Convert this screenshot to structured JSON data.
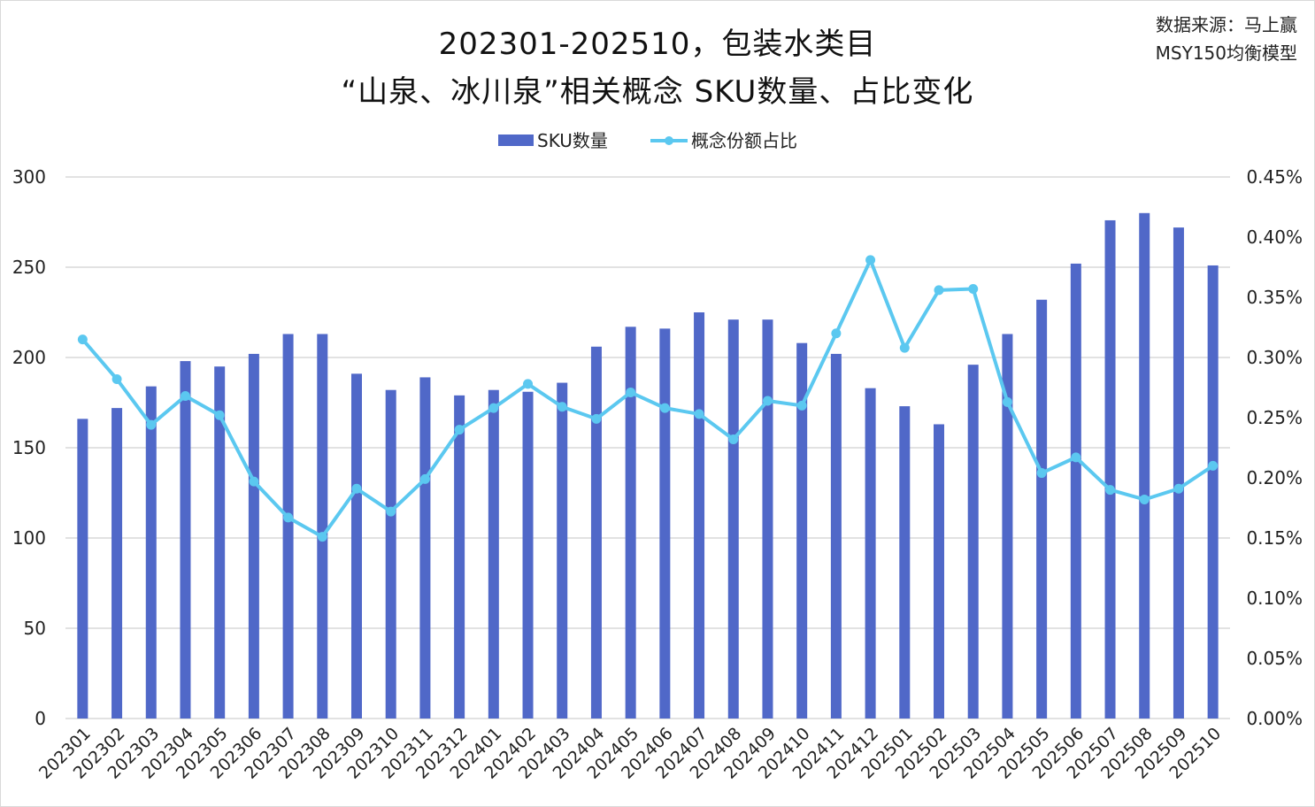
{
  "chart_data": {
    "type": "bar+line",
    "title_line1": "202301-202510，包装水类目",
    "title_line2": "“山泉、冰川泉”相关概念 SKU数量、占比变化",
    "source_line1": "数据来源：马上赢",
    "source_line2": "MSY150均衡模型",
    "legend_position": "top",
    "grid": true,
    "categories": [
      "202301",
      "202302",
      "202303",
      "202304",
      "202305",
      "202306",
      "202307",
      "202308",
      "202309",
      "202310",
      "202311",
      "202312",
      "202401",
      "202402",
      "202403",
      "202404",
      "202405",
      "202406",
      "202407",
      "202408",
      "202409",
      "202410",
      "202411",
      "202412",
      "202501",
      "202502",
      "202503",
      "202504",
      "202505",
      "202506",
      "202507",
      "202508",
      "202509",
      "202510"
    ],
    "series": [
      {
        "name": "SKU数量",
        "type": "bar",
        "axis": "left",
        "color": "#5068C8",
        "values": [
          166,
          172,
          184,
          198,
          195,
          202,
          213,
          213,
          191,
          182,
          189,
          179,
          182,
          181,
          186,
          206,
          217,
          216,
          225,
          221,
          221,
          208,
          202,
          183,
          173,
          163,
          196,
          213,
          232,
          252,
          276,
          280,
          272,
          251
        ]
      },
      {
        "name": "概念份额占比",
        "type": "line",
        "axis": "right",
        "color": "#5BC8F0",
        "values": [
          0.315,
          0.282,
          0.244,
          0.268,
          0.252,
          0.197,
          0.167,
          0.151,
          0.191,
          0.172,
          0.199,
          0.24,
          0.258,
          0.278,
          0.259,
          0.249,
          0.271,
          0.258,
          0.253,
          0.232,
          0.264,
          0.26,
          0.32,
          0.381,
          0.308,
          0.356,
          0.357,
          0.263,
          0.204,
          0.217,
          0.19,
          0.182,
          0.191,
          0.21
        ]
      }
    ],
    "y_left": {
      "ylim": [
        0,
        300
      ],
      "ticks": [
        "0",
        "50",
        "100",
        "150",
        "200",
        "250",
        "300"
      ]
    },
    "y_right": {
      "ylim": [
        0,
        0.45
      ],
      "ticks": [
        "0.00%",
        "0.05%",
        "0.10%",
        "0.15%",
        "0.20%",
        "0.25%",
        "0.30%",
        "0.35%",
        "0.40%",
        "0.45%"
      ]
    }
  }
}
